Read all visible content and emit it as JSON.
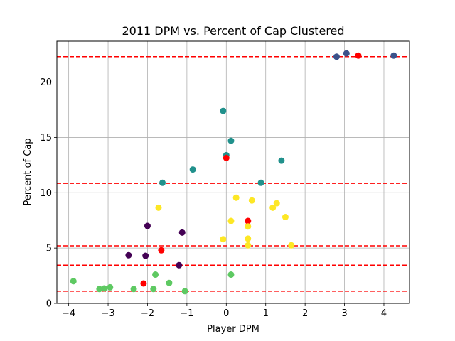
{
  "chart_data": {
    "type": "scatter",
    "title": "2011 DPM vs. Percent of Cap Clustered",
    "xlabel": "Player DPM",
    "ylabel": "Percent of Cap",
    "xlim": [
      -4.3,
      4.65
    ],
    "ylim": [
      0,
      23.7
    ],
    "xticks": [
      -4,
      -3,
      -2,
      -1,
      0,
      1,
      2,
      3,
      4
    ],
    "yticks": [
      0,
      5,
      10,
      15,
      20
    ],
    "grid": true,
    "legend": "none",
    "colors": {
      "dark_purple": "#440154",
      "blue": "#3b528b",
      "teal": "#21918c",
      "green": "#5ec962",
      "yellow": "#fde725",
      "red": "#ff0000",
      "hline": "#ff0000"
    },
    "hlines": [
      22.3,
      10.85,
      5.2,
      3.45,
      1.1
    ],
    "points": [
      {
        "x": 2.8,
        "y": 22.3,
        "c": "blue"
      },
      {
        "x": 3.05,
        "y": 22.6,
        "c": "blue"
      },
      {
        "x": 3.35,
        "y": 22.4,
        "c": "red"
      },
      {
        "x": 4.25,
        "y": 22.4,
        "c": "blue"
      },
      {
        "x": -0.08,
        "y": 17.4,
        "c": "teal"
      },
      {
        "x": 0.12,
        "y": 14.7,
        "c": "teal"
      },
      {
        "x": 0.0,
        "y": 13.4,
        "c": "teal"
      },
      {
        "x": 0.0,
        "y": 13.15,
        "c": "red"
      },
      {
        "x": 1.4,
        "y": 12.9,
        "c": "teal"
      },
      {
        "x": -0.85,
        "y": 12.1,
        "c": "teal"
      },
      {
        "x": -1.62,
        "y": 10.9,
        "c": "teal"
      },
      {
        "x": 0.88,
        "y": 10.9,
        "c": "teal"
      },
      {
        "x": 0.25,
        "y": 9.55,
        "c": "yellow"
      },
      {
        "x": 0.65,
        "y": 9.3,
        "c": "yellow"
      },
      {
        "x": 1.28,
        "y": 9.05,
        "c": "yellow"
      },
      {
        "x": 1.18,
        "y": 8.65,
        "c": "yellow"
      },
      {
        "x": -1.72,
        "y": 8.65,
        "c": "yellow"
      },
      {
        "x": 1.5,
        "y": 7.8,
        "c": "yellow"
      },
      {
        "x": 0.12,
        "y": 7.45,
        "c": "yellow"
      },
      {
        "x": 0.55,
        "y": 7.45,
        "c": "red"
      },
      {
        "x": 0.55,
        "y": 6.95,
        "c": "yellow"
      },
      {
        "x": -2.0,
        "y": 7.0,
        "c": "dark_purple"
      },
      {
        "x": -1.12,
        "y": 6.4,
        "c": "dark_purple"
      },
      {
        "x": -0.08,
        "y": 5.8,
        "c": "yellow"
      },
      {
        "x": 0.55,
        "y": 5.85,
        "c": "yellow"
      },
      {
        "x": 0.55,
        "y": 5.25,
        "c": "yellow"
      },
      {
        "x": 1.65,
        "y": 5.25,
        "c": "yellow"
      },
      {
        "x": -1.65,
        "y": 4.8,
        "c": "red"
      },
      {
        "x": -2.48,
        "y": 4.35,
        "c": "dark_purple"
      },
      {
        "x": -2.05,
        "y": 4.3,
        "c": "dark_purple"
      },
      {
        "x": -1.2,
        "y": 3.45,
        "c": "dark_purple"
      },
      {
        "x": -1.8,
        "y": 2.6,
        "c": "green"
      },
      {
        "x": 0.12,
        "y": 2.6,
        "c": "green"
      },
      {
        "x": -3.88,
        "y": 2.0,
        "c": "green"
      },
      {
        "x": -1.45,
        "y": 1.85,
        "c": "green"
      },
      {
        "x": -2.1,
        "y": 1.8,
        "c": "red"
      },
      {
        "x": -2.95,
        "y": 1.45,
        "c": "green"
      },
      {
        "x": -3.22,
        "y": 1.3,
        "c": "green"
      },
      {
        "x": -3.1,
        "y": 1.35,
        "c": "green"
      },
      {
        "x": -2.35,
        "y": 1.3,
        "c": "green"
      },
      {
        "x": -1.85,
        "y": 1.3,
        "c": "green"
      },
      {
        "x": -1.05,
        "y": 1.1,
        "c": "green"
      }
    ]
  }
}
